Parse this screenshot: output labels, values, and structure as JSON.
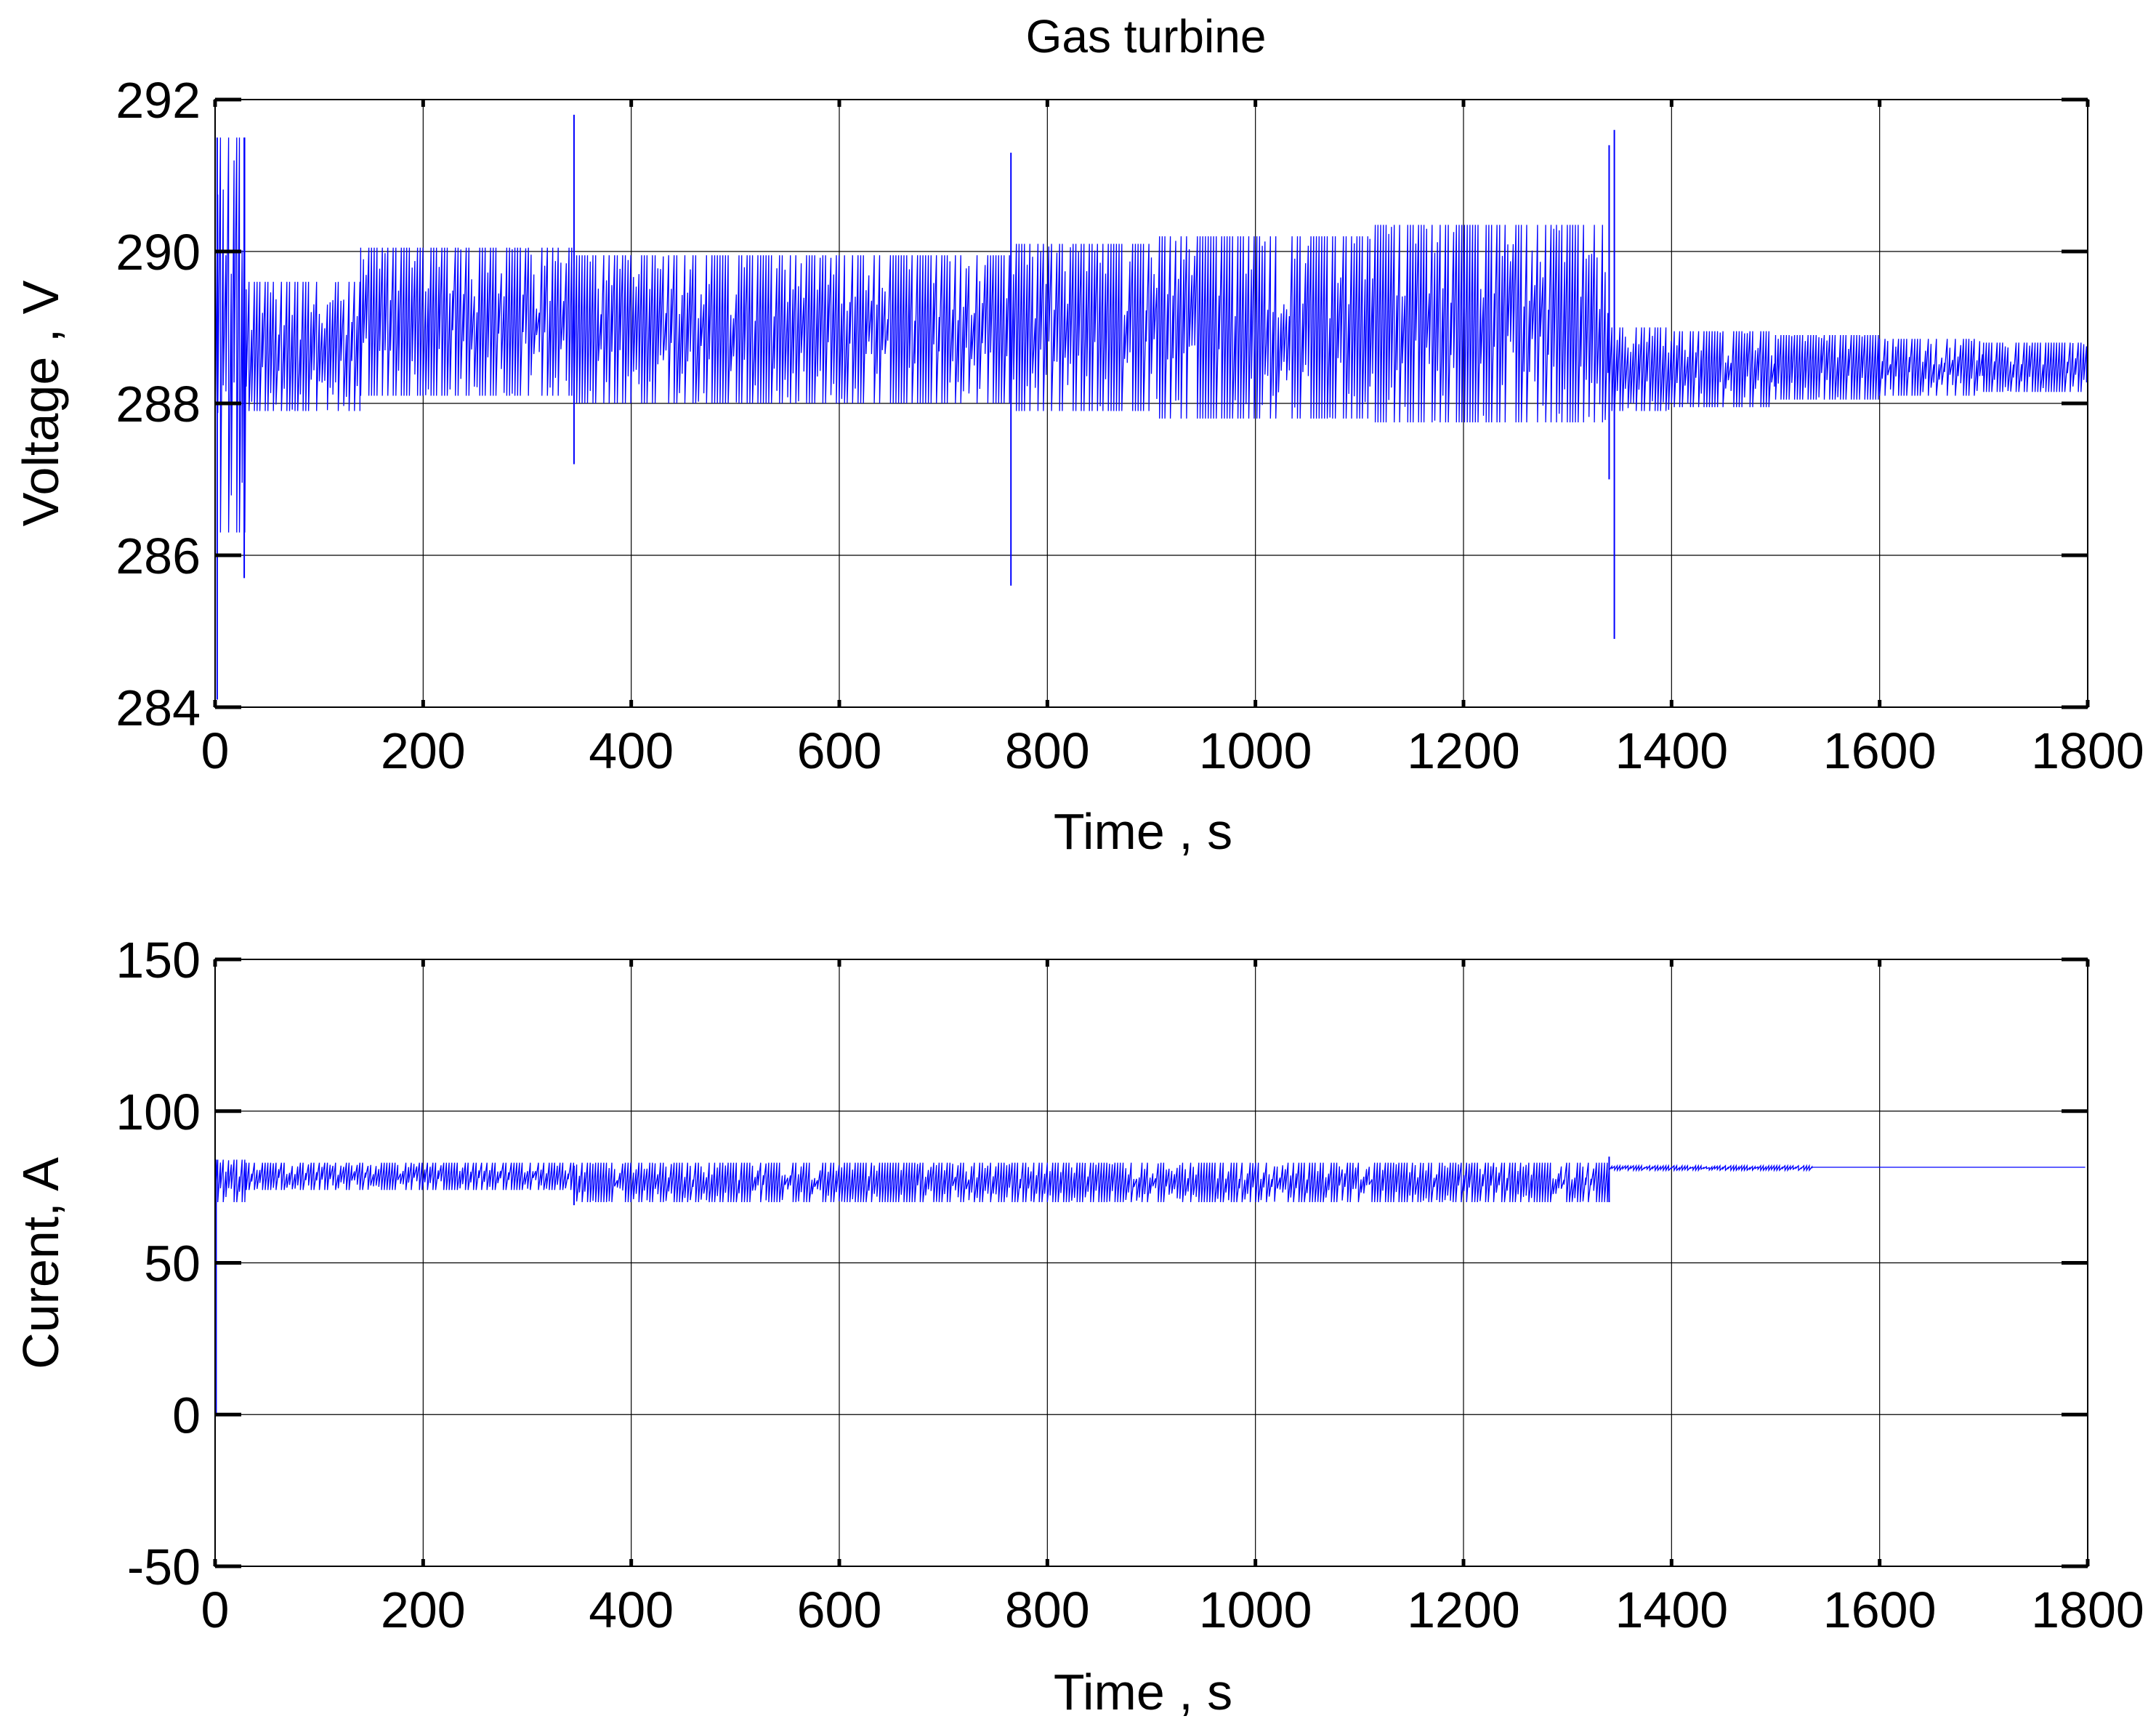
{
  "chart_data": [
    {
      "type": "line",
      "title": "Gas turbine",
      "xlabel": "Time , s",
      "ylabel": "Voltage , V",
      "xlim": [
        0,
        1800
      ],
      "ylim": [
        284,
        292
      ],
      "x_ticks": [
        0,
        200,
        400,
        600,
        800,
        1000,
        1200,
        1400,
        1600,
        1800
      ],
      "y_ticks": [
        284,
        286,
        288,
        290,
        292
      ],
      "x_tick_labels": [
        "0",
        "200",
        "400",
        "600",
        "800",
        "1000",
        "1200",
        "1400",
        "1600",
        "1800"
      ],
      "y_tick_labels": [
        "284",
        "286",
        "288",
        "290",
        "292"
      ],
      "grid": true,
      "series_color": "#0000ff",
      "segments": [
        {
          "t0": 0,
          "t1": 30,
          "low": 286.3,
          "high": 291.5
        },
        {
          "t0": 30,
          "t1": 140,
          "low": 287.9,
          "high": 289.6
        },
        {
          "t0": 140,
          "t1": 345,
          "low": 288.1,
          "high": 290.05
        },
        {
          "t0": 345,
          "t1": 765,
          "low": 288.0,
          "high": 289.95
        },
        {
          "t0": 765,
          "t1": 900,
          "low": 287.9,
          "high": 290.1
        },
        {
          "t0": 900,
          "t1": 1110,
          "low": 287.8,
          "high": 290.2
        },
        {
          "t0": 1110,
          "t1": 1340,
          "low": 287.75,
          "high": 290.35
        },
        {
          "t0": 1340,
          "t1": 1400,
          "low": 287.9,
          "high": 289.0
        },
        {
          "t0": 1400,
          "t1": 1500,
          "low": 287.95,
          "high": 288.95
        },
        {
          "t0": 1500,
          "t1": 1600,
          "low": 288.05,
          "high": 288.9
        },
        {
          "t0": 1600,
          "t1": 1700,
          "low": 288.1,
          "high": 288.85
        },
        {
          "t0": 1700,
          "t1": 1800,
          "low": 288.15,
          "high": 288.8
        }
      ],
      "spikes": [
        {
          "t": 2,
          "low": 284.1,
          "high": 291.5
        },
        {
          "t": 28,
          "low": 285.7,
          "high": 291.5
        },
        {
          "t": 345,
          "low": 287.2,
          "high": 291.8
        },
        {
          "t": 765,
          "low": 285.6,
          "high": 291.3
        },
        {
          "t": 1340,
          "low": 287.0,
          "high": 291.4
        },
        {
          "t": 1345,
          "low": 284.9,
          "high": 291.6
        }
      ]
    },
    {
      "type": "line",
      "title": "",
      "xlabel": "Time , s",
      "ylabel": "Curent, A",
      "xlim": [
        0,
        1800
      ],
      "ylim": [
        -50,
        150
      ],
      "x_ticks": [
        0,
        200,
        400,
        600,
        800,
        1000,
        1200,
        1400,
        1600,
        1800
      ],
      "y_ticks": [
        -50,
        0,
        50,
        100,
        150
      ],
      "x_tick_labels": [
        "0",
        "200",
        "400",
        "600",
        "800",
        "1000",
        "1200",
        "1400",
        "1600",
        "1800"
      ],
      "y_tick_labels": [
        "-50",
        "0",
        "50",
        "100",
        "150"
      ],
      "grid": true,
      "series_color": "#0000ff",
      "segments": [
        {
          "t0": 0,
          "t1": 30,
          "low": 70,
          "high": 84
        },
        {
          "t0": 30,
          "t1": 345,
          "low": 74,
          "high": 83
        },
        {
          "t0": 345,
          "t1": 1340,
          "low": 70,
          "high": 83
        },
        {
          "t0": 1340,
          "t1": 1535,
          "low": 80.5,
          "high": 82
        },
        {
          "t0": 1535,
          "t1": 1800,
          "low": 81.5,
          "high": 81.5
        }
      ],
      "spikes": [
        {
          "t": 1,
          "low": 0,
          "high": 84
        },
        {
          "t": 345,
          "low": 69,
          "high": 82
        },
        {
          "t": 1340,
          "low": 70,
          "high": 85
        }
      ]
    }
  ]
}
